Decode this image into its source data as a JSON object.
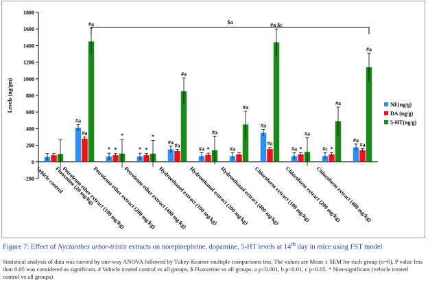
{
  "chart_data": {
    "type": "bar",
    "y_label": "Levels (ng/gm)",
    "categories": [
      "Vehicle control",
      "Fluoxetine (20 mg/kg)",
      "Petroleum ether extract (100 mg/kg)",
      "Petroleum ether extract (200 mg/kg)",
      "Petroleum ether extract (400 mg/kg)",
      "Hydroethanol extract (100 mg/kg)",
      "Hydroethanol extract (200 mg/kg)",
      "Hydroethanol extract (400 mg/kg)",
      "Chloroform extract (100 mg/kg)",
      "Chloroform extract (200 mg/kg)",
      "Chloroform extract (400 mg/kg)"
    ],
    "series": [
      {
        "name": "NE(ng/g)",
        "color": "#2f8ff0",
        "values": [
          60,
          410,
          65,
          65,
          150,
          70,
          70,
          350,
          70,
          70,
          175
        ],
        "errors": [
          40,
          40,
          40,
          40,
          40,
          40,
          40,
          40,
          40,
          40,
          40
        ],
        "annotations": [
          null,
          "#a",
          "*",
          "*",
          "#a",
          "#a",
          "#a",
          "#a",
          "#a",
          "#c",
          "#a"
        ]
      },
      {
        "name": "DA (ng/g)",
        "color": "#e8141b",
        "values": [
          80,
          280,
          80,
          80,
          130,
          85,
          90,
          155,
          90,
          90,
          140
        ],
        "errors": [
          20,
          20,
          20,
          20,
          20,
          20,
          20,
          20,
          20,
          20,
          20
        ],
        "annotations": [
          null,
          "#a",
          "*",
          "*",
          "#a",
          "*",
          null,
          "#a",
          "*",
          "*",
          "#a"
        ]
      },
      {
        "name": "5-HT(ng/g)",
        "color": "#1a8a1a",
        "values": [
          95,
          1450,
          100,
          100,
          850,
          140,
          450,
          1440,
          120,
          490,
          1140
        ],
        "errors": [
          170,
          160,
          170,
          160,
          160,
          170,
          160,
          160,
          170,
          170,
          170
        ],
        "annotations": [
          null,
          "#a",
          "*",
          "*",
          "#a",
          "#a",
          "#a",
          "#a $c",
          "#a",
          "#a",
          "#a"
        ]
      }
    ],
    "bracket": {
      "label": "$a",
      "value": 1620
    },
    "ylim": [
      -200,
      1800
    ],
    "yticks": [
      -200,
      0,
      200,
      400,
      600,
      800,
      1000,
      1200,
      1400,
      1600,
      1800
    ],
    "legend": "right"
  },
  "caption": [
    "Figure 7:  Effect of ",
    "Nyctanthes arbor-tristis",
    " extracts on norepinephrine, dopamine, 5-HT levels at 14",
    "th",
    " day in mice using FST model"
  ],
  "note": "Statistical analysis of data was carried by one-way ANOVA followed by Tukey-Kramer multiple comparisons test. The values are Mean ± SEM for each group (n=6), P value less than 0.05 was considered as significant. # Vehicle treated control vs all groups, $ Fluoxetine vs all groups. a p<0.001, b p<0.01, c p<0.05. * Non-significant (vehicle treated control vs all groups)"
}
